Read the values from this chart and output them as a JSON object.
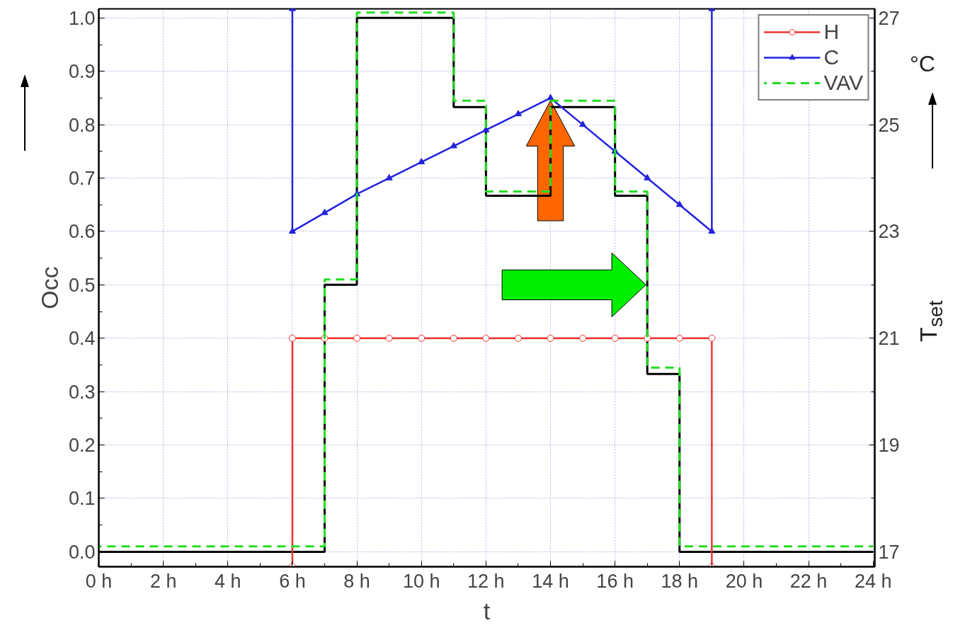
{
  "chart_data": {
    "type": "step",
    "xlabel": "t",
    "ylabel": "Occ",
    "y2label": "T$_{set}$",
    "annotations": [
      "°C"
    ],
    "xlim": [
      0,
      24.05
    ],
    "xticks": [
      {
        "value": 0,
        "label": "0 h"
      },
      {
        "value": 1,
        "label": null
      },
      {
        "value": 2,
        "label": "2 h"
      },
      {
        "value": 3,
        "label": null
      },
      {
        "value": 4,
        "label": "4 h"
      },
      {
        "value": 5,
        "label": null
      },
      {
        "value": 6,
        "label": "6 h"
      },
      {
        "value": 7,
        "label": null
      },
      {
        "value": 8,
        "label": "8 h"
      },
      {
        "value": 9,
        "label": null
      },
      {
        "value": 10,
        "label": "10 h"
      },
      {
        "value": 11,
        "label": null
      },
      {
        "value": 12,
        "label": "12 h"
      },
      {
        "value": 13,
        "label": null
      },
      {
        "value": 14,
        "label": "14 h"
      },
      {
        "value": 15,
        "label": null
      },
      {
        "value": 16,
        "label": "16 h"
      },
      {
        "value": 17,
        "label": null
      },
      {
        "value": 18,
        "label": "18 h"
      },
      {
        "value": 19,
        "label": null
      },
      {
        "value": 20,
        "label": "20 h"
      },
      {
        "value": 21,
        "label": null
      },
      {
        "value": 22,
        "label": "22 h"
      },
      {
        "value": 23,
        "label": null
      },
      {
        "value": 24,
        "label": "24 h"
      }
    ],
    "ylim": [
      -0.028,
      1.017
    ],
    "yticks": [
      {
        "value": 0,
        "label": "0.0"
      },
      {
        "value": 0.05,
        "label": null
      },
      0.1,
      {
        "value": 0.15,
        "label": null
      },
      0.2,
      {
        "value": 0.25,
        "label": null
      },
      0.3,
      {
        "value": 0.35,
        "label": null
      },
      0.4,
      {
        "value": 0.45,
        "label": null
      },
      0.5,
      {
        "value": 0.55,
        "label": null
      },
      0.6,
      {
        "value": 0.65,
        "label": null
      },
      0.7,
      {
        "value": 0.75,
        "label": null
      },
      0.8,
      {
        "value": 0.85,
        "label": null
      },
      0.9,
      {
        "value": 0.95,
        "label": null
      },
      {
        "value": 1,
        "label": "1.0"
      }
    ],
    "y2lim": [
      16.72,
      27.17
    ],
    "y2ticks": [
      17,
      {
        "value": 18,
        "label": null
      },
      19,
      {
        "value": 20,
        "label": null
      },
      21,
      {
        "value": 22,
        "label": null
      },
      23,
      {
        "value": 24,
        "label": null
      },
      25,
      {
        "value": 26,
        "label": null
      },
      27
    ],
    "grid": true,
    "legend": "top right",
    "series": [
      {
        "type": "step",
        "color": "#000000",
        "line_style": "solid",
        "marker": "none",
        "x": [
          0,
          7,
          8,
          11,
          12,
          14,
          16,
          17,
          18,
          24
        ],
        "values": [
          0,
          0.5,
          1,
          0.833,
          0.667,
          0.833,
          0.667,
          0.333,
          0,
          0
        ]
      },
      {
        "name": "H",
        "type": "line",
        "axis": "y2",
        "color": "#ee3333",
        "line_style": "solid",
        "marker": "circle",
        "x": [
          6,
          6,
          7,
          8,
          9,
          10,
          11,
          12,
          13,
          14,
          15,
          16,
          17,
          18,
          19,
          19
        ],
        "values": [
          16.72,
          21,
          21,
          21,
          21,
          21,
          21,
          21,
          21,
          21,
          21,
          21,
          21,
          21,
          21,
          16.72
        ]
      },
      {
        "name": "C",
        "type": "line",
        "axis": "y2",
        "color": "#2222dd",
        "line_style": "solid",
        "marker": "triangle",
        "x": [
          6,
          6,
          7,
          8,
          9,
          10,
          11,
          12,
          13,
          14,
          15,
          16,
          17,
          18,
          19,
          19
        ],
        "values": [
          27.17,
          23,
          23.35,
          23.7,
          24,
          24.3,
          24.6,
          24.9,
          25.2,
          25.5,
          25,
          24.5,
          24,
          23.5,
          23,
          27.17
        ]
      },
      {
        "name": "VAV",
        "type": "step",
        "color": "#22dd22",
        "line_style": "dashed",
        "marker": "none",
        "x": [
          0,
          7,
          8,
          11,
          12,
          14,
          16,
          17,
          18,
          24
        ],
        "values": [
          0.01,
          0.51,
          1.01,
          0.845,
          0.675,
          0.845,
          0.675,
          0.345,
          0.01,
          0.01
        ]
      }
    ]
  }
}
